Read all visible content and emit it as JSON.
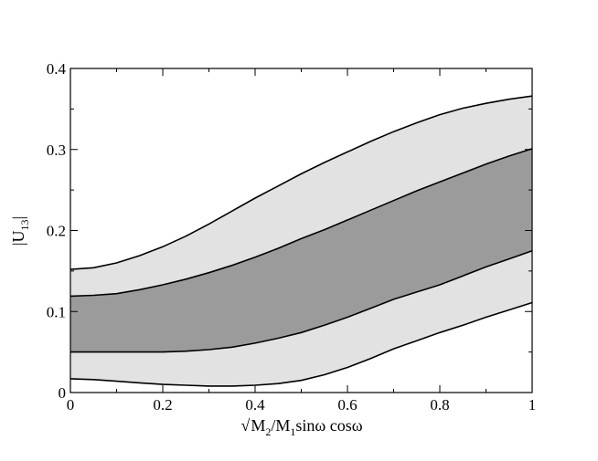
{
  "chart_data": {
    "type": "area",
    "title": "",
    "xlabel": {
      "sqrt": "√",
      "m2": "M",
      "m2_sub": "2",
      "slash": "/M",
      "m1_sub": "1",
      "rest": "sinω cosω"
    },
    "ylabel": {
      "main": "|U",
      "sub": "13",
      "end": "|"
    },
    "xlim": [
      0,
      1
    ],
    "ylim": [
      0,
      0.4
    ],
    "x_ticks": [
      {
        "value": 0,
        "label": "0"
      },
      {
        "value": 0.2,
        "label": "0.2"
      },
      {
        "value": 0.4,
        "label": "0.4"
      },
      {
        "value": 0.6,
        "label": "0.6"
      },
      {
        "value": 0.8,
        "label": "0.8"
      },
      {
        "value": 1,
        "label": "1"
      }
    ],
    "y_ticks": [
      {
        "value": 0,
        "label": "0"
      },
      {
        "value": 0.1,
        "label": "0.1"
      },
      {
        "value": 0.2,
        "label": "0.2"
      },
      {
        "value": 0.3,
        "label": "0.3"
      },
      {
        "value": 0.4,
        "label": "0.4"
      }
    ],
    "x": [
      0,
      0.05,
      0.1,
      0.15,
      0.2,
      0.25,
      0.3,
      0.35,
      0.4,
      0.45,
      0.5,
      0.55,
      0.6,
      0.65,
      0.7,
      0.75,
      0.8,
      0.85,
      0.9,
      0.95,
      1.0
    ],
    "bands": [
      {
        "level": "outer",
        "fill": "#e2e2e2",
        "upper": [
          0.152,
          0.154,
          0.16,
          0.169,
          0.18,
          0.193,
          0.208,
          0.224,
          0.24,
          0.255,
          0.27,
          0.284,
          0.297,
          0.31,
          0.322,
          0.333,
          0.343,
          0.351,
          0.357,
          0.362,
          0.366
        ],
        "lower": [
          0.017,
          0.016,
          0.014,
          0.012,
          0.01,
          0.009,
          0.008,
          0.008,
          0.009,
          0.011,
          0.015,
          0.022,
          0.031,
          0.042,
          0.054,
          0.064,
          0.074,
          0.083,
          0.093,
          0.102,
          0.111
        ]
      },
      {
        "level": "inner",
        "fill": "#9b9b9b",
        "upper": [
          0.119,
          0.12,
          0.122,
          0.127,
          0.133,
          0.14,
          0.148,
          0.157,
          0.167,
          0.178,
          0.19,
          0.201,
          0.213,
          0.225,
          0.237,
          0.249,
          0.26,
          0.271,
          0.282,
          0.292,
          0.301
        ],
        "lower": [
          0.05,
          0.05,
          0.05,
          0.05,
          0.05,
          0.051,
          0.053,
          0.056,
          0.061,
          0.067,
          0.074,
          0.083,
          0.093,
          0.104,
          0.115,
          0.124,
          0.133,
          0.144,
          0.155,
          0.165,
          0.175
        ]
      }
    ],
    "grid": false,
    "legend": "none"
  }
}
